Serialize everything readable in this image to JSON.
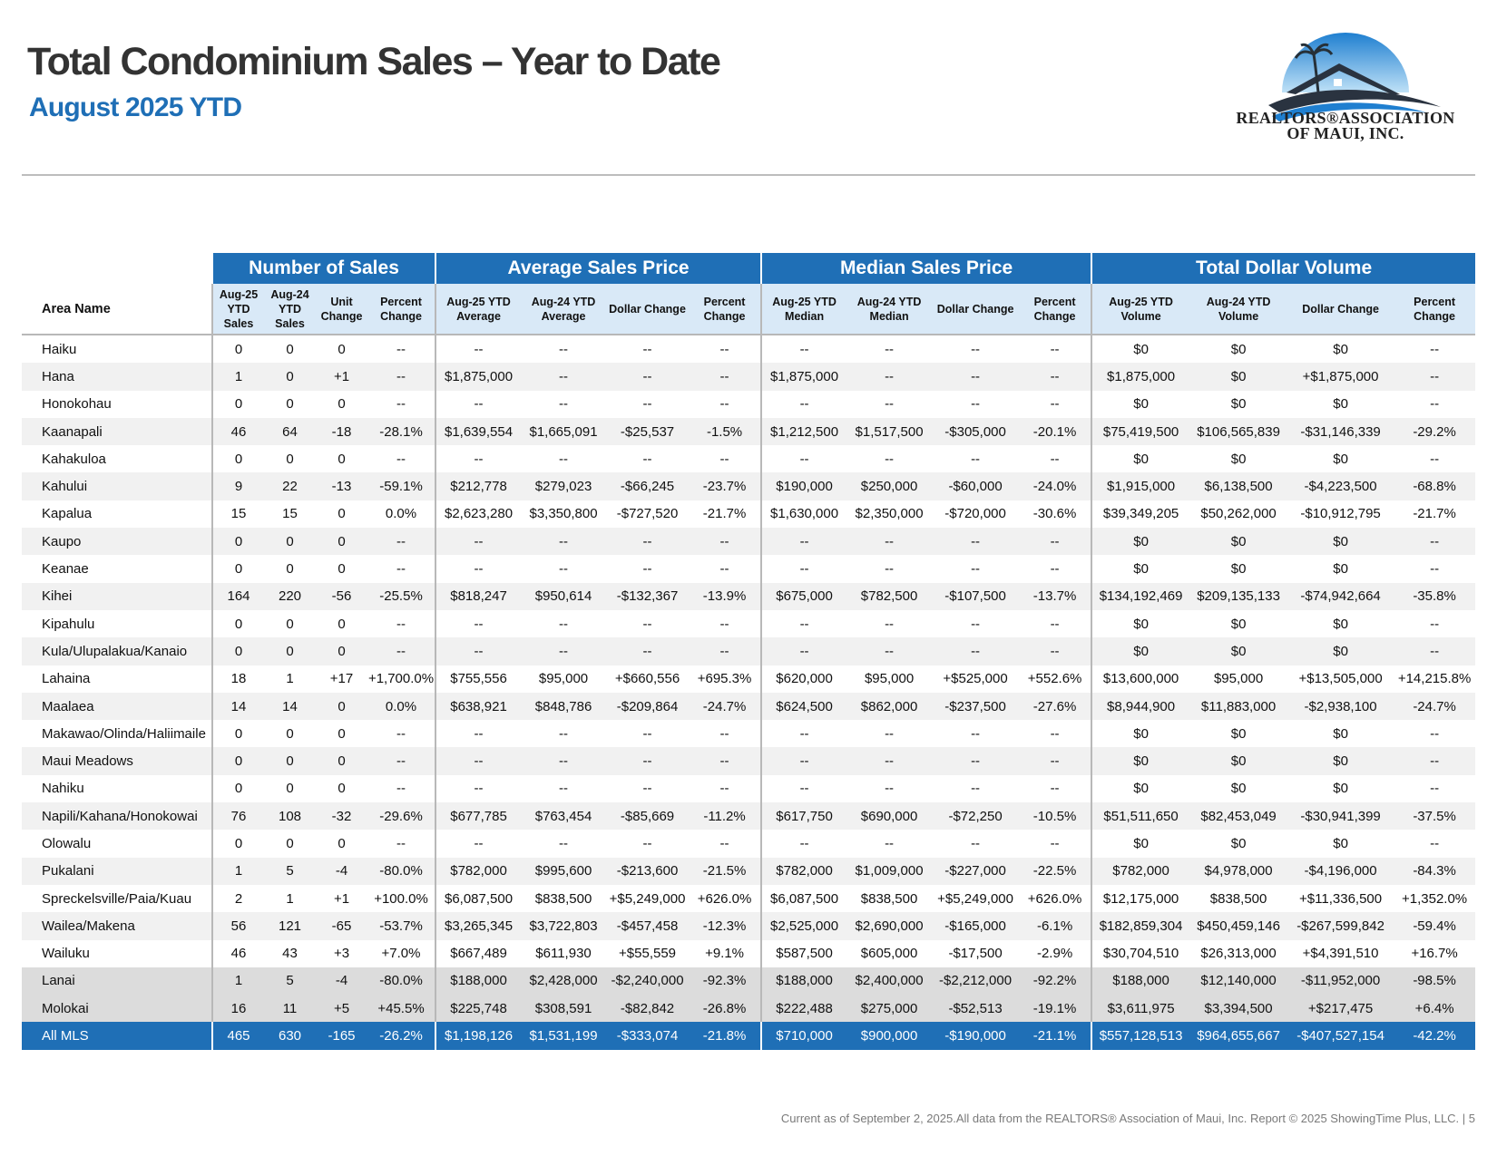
{
  "header": {
    "title": "Total Condominium Sales – Year to Date",
    "subtitle": "August 2025 YTD",
    "logo_line1": "REALTORS®ASSOCIATION",
    "logo_line2": "OF MAUI, INC."
  },
  "colors": {
    "accent_blue": "#1f6fb6",
    "subheader_blue": "#d9e9f7",
    "title_gray": "#333333",
    "zebra_gray": "#f1f1f1",
    "island_gray": "#dcdcdc"
  },
  "table": {
    "groups": [
      "Number of Sales",
      "Average Sales Price",
      "Median Sales Price",
      "Total Dollar Volume"
    ],
    "area_header": "Area Name",
    "columns": [
      "Aug-25 YTD Sales",
      "Aug-24 YTD Sales",
      "Unit Change",
      "Percent Change",
      "Aug-25 YTD Average",
      "Aug-24 YTD Average",
      "Dollar Change",
      "Percent Change",
      "Aug-25 YTD Median",
      "Aug-24 YTD Median",
      "Dollar Change",
      "Percent Change",
      "Aug-25 YTD Volume",
      "Aug-24 YTD Volume",
      "Dollar Change",
      "Percent Change"
    ],
    "rows": [
      [
        "Haiku",
        "0",
        "0",
        "0",
        "--",
        "--",
        "--",
        "--",
        "--",
        "--",
        "--",
        "--",
        "--",
        "$0",
        "$0",
        "$0",
        "--"
      ],
      [
        "Hana",
        "1",
        "0",
        "+1",
        "--",
        "$1,875,000",
        "--",
        "--",
        "--",
        "$1,875,000",
        "--",
        "--",
        "--",
        "$1,875,000",
        "$0",
        "+$1,875,000",
        "--"
      ],
      [
        "Honokohau",
        "0",
        "0",
        "0",
        "--",
        "--",
        "--",
        "--",
        "--",
        "--",
        "--",
        "--",
        "--",
        "$0",
        "$0",
        "$0",
        "--"
      ],
      [
        "Kaanapali",
        "46",
        "64",
        "-18",
        "-28.1%",
        "$1,639,554",
        "$1,665,091",
        "-$25,537",
        "-1.5%",
        "$1,212,500",
        "$1,517,500",
        "-$305,000",
        "-20.1%",
        "$75,419,500",
        "$106,565,839",
        "-$31,146,339",
        "-29.2%"
      ],
      [
        "Kahakuloa",
        "0",
        "0",
        "0",
        "--",
        "--",
        "--",
        "--",
        "--",
        "--",
        "--",
        "--",
        "--",
        "$0",
        "$0",
        "$0",
        "--"
      ],
      [
        "Kahului",
        "9",
        "22",
        "-13",
        "-59.1%",
        "$212,778",
        "$279,023",
        "-$66,245",
        "-23.7%",
        "$190,000",
        "$250,000",
        "-$60,000",
        "-24.0%",
        "$1,915,000",
        "$6,138,500",
        "-$4,223,500",
        "-68.8%"
      ],
      [
        "Kapalua",
        "15",
        "15",
        "0",
        "0.0%",
        "$2,623,280",
        "$3,350,800",
        "-$727,520",
        "-21.7%",
        "$1,630,000",
        "$2,350,000",
        "-$720,000",
        "-30.6%",
        "$39,349,205",
        "$50,262,000",
        "-$10,912,795",
        "-21.7%"
      ],
      [
        "Kaupo",
        "0",
        "0",
        "0",
        "--",
        "--",
        "--",
        "--",
        "--",
        "--",
        "--",
        "--",
        "--",
        "$0",
        "$0",
        "$0",
        "--"
      ],
      [
        "Keanae",
        "0",
        "0",
        "0",
        "--",
        "--",
        "--",
        "--",
        "--",
        "--",
        "--",
        "--",
        "--",
        "$0",
        "$0",
        "$0",
        "--"
      ],
      [
        "Kihei",
        "164",
        "220",
        "-56",
        "-25.5%",
        "$818,247",
        "$950,614",
        "-$132,367",
        "-13.9%",
        "$675,000",
        "$782,500",
        "-$107,500",
        "-13.7%",
        "$134,192,469",
        "$209,135,133",
        "-$74,942,664",
        "-35.8%"
      ],
      [
        "Kipahulu",
        "0",
        "0",
        "0",
        "--",
        "--",
        "--",
        "--",
        "--",
        "--",
        "--",
        "--",
        "--",
        "$0",
        "$0",
        "$0",
        "--"
      ],
      [
        "Kula/Ulupalakua/Kanaio",
        "0",
        "0",
        "0",
        "--",
        "--",
        "--",
        "--",
        "--",
        "--",
        "--",
        "--",
        "--",
        "$0",
        "$0",
        "$0",
        "--"
      ],
      [
        "Lahaina",
        "18",
        "1",
        "+17",
        "+1,700.0%",
        "$755,556",
        "$95,000",
        "+$660,556",
        "+695.3%",
        "$620,000",
        "$95,000",
        "+$525,000",
        "+552.6%",
        "$13,600,000",
        "$95,000",
        "+$13,505,000",
        "+14,215.8%"
      ],
      [
        "Maalaea",
        "14",
        "14",
        "0",
        "0.0%",
        "$638,921",
        "$848,786",
        "-$209,864",
        "-24.7%",
        "$624,500",
        "$862,000",
        "-$237,500",
        "-27.6%",
        "$8,944,900",
        "$11,883,000",
        "-$2,938,100",
        "-24.7%"
      ],
      [
        "Makawao/Olinda/Haliimaile",
        "0",
        "0",
        "0",
        "--",
        "--",
        "--",
        "--",
        "--",
        "--",
        "--",
        "--",
        "--",
        "$0",
        "$0",
        "$0",
        "--"
      ],
      [
        "Maui Meadows",
        "0",
        "0",
        "0",
        "--",
        "--",
        "--",
        "--",
        "--",
        "--",
        "--",
        "--",
        "--",
        "$0",
        "$0",
        "$0",
        "--"
      ],
      [
        "Nahiku",
        "0",
        "0",
        "0",
        "--",
        "--",
        "--",
        "--",
        "--",
        "--",
        "--",
        "--",
        "--",
        "$0",
        "$0",
        "$0",
        "--"
      ],
      [
        "Napili/Kahana/Honokowai",
        "76",
        "108",
        "-32",
        "-29.6%",
        "$677,785",
        "$763,454",
        "-$85,669",
        "-11.2%",
        "$617,750",
        "$690,000",
        "-$72,250",
        "-10.5%",
        "$51,511,650",
        "$82,453,049",
        "-$30,941,399",
        "-37.5%"
      ],
      [
        "Olowalu",
        "0",
        "0",
        "0",
        "--",
        "--",
        "--",
        "--",
        "--",
        "--",
        "--",
        "--",
        "--",
        "$0",
        "$0",
        "$0",
        "--"
      ],
      [
        "Pukalani",
        "1",
        "5",
        "-4",
        "-80.0%",
        "$782,000",
        "$995,600",
        "-$213,600",
        "-21.5%",
        "$782,000",
        "$1,009,000",
        "-$227,000",
        "-22.5%",
        "$782,000",
        "$4,978,000",
        "-$4,196,000",
        "-84.3%"
      ],
      [
        "Spreckelsville/Paia/Kuau",
        "2",
        "1",
        "+1",
        "+100.0%",
        "$6,087,500",
        "$838,500",
        "+$5,249,000",
        "+626.0%",
        "$6,087,500",
        "$838,500",
        "+$5,249,000",
        "+626.0%",
        "$12,175,000",
        "$838,500",
        "+$11,336,500",
        "+1,352.0%"
      ],
      [
        "Wailea/Makena",
        "56",
        "121",
        "-65",
        "-53.7%",
        "$3,265,345",
        "$3,722,803",
        "-$457,458",
        "-12.3%",
        "$2,525,000",
        "$2,690,000",
        "-$165,000",
        "-6.1%",
        "$182,859,304",
        "$450,459,146",
        "-$267,599,842",
        "-59.4%"
      ],
      [
        "Wailuku",
        "46",
        "43",
        "+3",
        "+7.0%",
        "$667,489",
        "$611,930",
        "+$55,559",
        "+9.1%",
        "$587,500",
        "$605,000",
        "-$17,500",
        "-2.9%",
        "$30,704,510",
        "$26,313,000",
        "+$4,391,510",
        "+16.7%"
      ]
    ],
    "island_rows": [
      [
        "Lanai",
        "1",
        "5",
        "-4",
        "-80.0%",
        "$188,000",
        "$2,428,000",
        "-$2,240,000",
        "-92.3%",
        "$188,000",
        "$2,400,000",
        "-$2,212,000",
        "-92.2%",
        "$188,000",
        "$12,140,000",
        "-$11,952,000",
        "-98.5%"
      ],
      [
        "Molokai",
        "16",
        "11",
        "+5",
        "+45.5%",
        "$225,748",
        "$308,591",
        "-$82,842",
        "-26.8%",
        "$222,488",
        "$275,000",
        "-$52,513",
        "-19.1%",
        "$3,611,975",
        "$3,394,500",
        "+$217,475",
        "+6.4%"
      ]
    ],
    "total_row": [
      "All MLS",
      "465",
      "630",
      "-165",
      "-26.2%",
      "$1,198,126",
      "$1,531,199",
      "-$333,074",
      "-21.8%",
      "$710,000",
      "$900,000",
      "-$190,000",
      "-21.1%",
      "$557,128,513",
      "$964,655,667",
      "-$407,527,154",
      "-42.2%"
    ]
  },
  "footer": "Current as of September 2, 2025.All data from the REALTORS® Association of Maui, Inc. Report © 2025 ShowingTime Plus, LLC.  |  5"
}
